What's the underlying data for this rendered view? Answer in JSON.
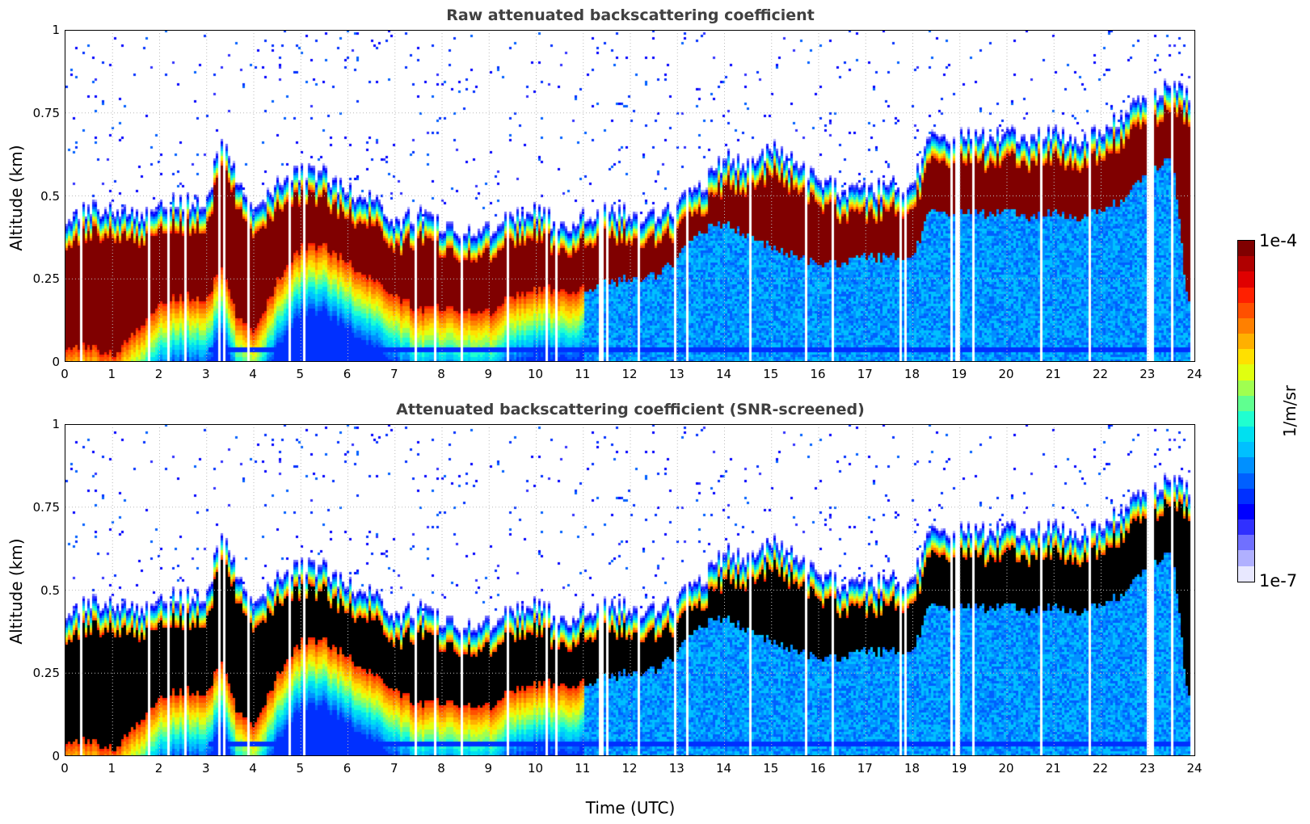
{
  "chart_data": [
    {
      "type": "heatmap",
      "title": "Raw attenuated backscattering coefficient",
      "xlabel": "",
      "ylabel": "Altitude (km)",
      "xlim": [
        0,
        24
      ],
      "ylim": [
        0,
        1
      ],
      "x_ticks": [
        "0",
        "1",
        "2",
        "3",
        "4",
        "5",
        "6",
        "7",
        "8",
        "9",
        "10",
        "11",
        "12",
        "13",
        "14",
        "15",
        "16",
        "17",
        "18",
        "19",
        "20",
        "21",
        "22",
        "23",
        "24"
      ],
      "y_ticks": [
        "0",
        "0.25",
        "0.5",
        "0.75",
        "1"
      ],
      "grid": true,
      "screened": false,
      "layer_profile": {
        "time_utc": [
          0,
          0.5,
          1,
          1.5,
          2,
          2.5,
          3,
          3.3,
          3.6,
          4,
          4.5,
          5,
          5.5,
          6,
          6.5,
          7,
          7.5,
          8,
          8.5,
          9,
          9.5,
          10,
          10.5,
          11,
          11.5,
          12,
          12.5,
          13,
          13.5,
          14,
          14.5,
          15,
          15.5,
          16,
          16.5,
          17,
          17.5,
          18,
          18.3,
          19,
          19.5,
          20,
          20.5,
          21,
          21.5,
          22,
          22.5,
          23,
          23.5,
          23.8
        ],
        "layer_top_km": [
          0.42,
          0.45,
          0.44,
          0.43,
          0.46,
          0.47,
          0.48,
          0.68,
          0.55,
          0.45,
          0.52,
          0.56,
          0.55,
          0.5,
          0.48,
          0.4,
          0.44,
          0.4,
          0.38,
          0.38,
          0.42,
          0.44,
          0.4,
          0.42,
          0.44,
          0.44,
          0.42,
          0.46,
          0.52,
          0.6,
          0.58,
          0.64,
          0.58,
          0.54,
          0.5,
          0.5,
          0.52,
          0.52,
          0.65,
          0.66,
          0.66,
          0.68,
          0.66,
          0.67,
          0.66,
          0.68,
          0.74,
          0.79,
          0.82,
          0.8
        ],
        "layer_base_km": [
          0.05,
          0.05,
          0.02,
          0.1,
          0.18,
          0.2,
          0.2,
          0.3,
          0.15,
          0.1,
          0.25,
          0.35,
          0.35,
          0.3,
          0.25,
          0.2,
          0.16,
          0.17,
          0.16,
          0.15,
          0.2,
          0.22,
          0.22,
          0.22,
          0.24,
          0.26,
          0.26,
          0.32,
          0.4,
          0.42,
          0.38,
          0.35,
          0.32,
          0.3,
          0.3,
          0.32,
          0.32,
          0.32,
          0.45,
          0.45,
          0.45,
          0.46,
          0.44,
          0.45,
          0.44,
          0.46,
          0.5,
          0.58,
          0.62,
          0.2
        ]
      }
    },
    {
      "type": "heatmap",
      "title": "Attenuated backscattering coefficient (SNR-screened)",
      "xlabel": "Time (UTC)",
      "ylabel": "Altitude (km)",
      "xlim": [
        0,
        24
      ],
      "ylim": [
        0,
        1
      ],
      "x_ticks": [
        "0",
        "1",
        "2",
        "3",
        "4",
        "5",
        "6",
        "7",
        "8",
        "9",
        "10",
        "11",
        "12",
        "13",
        "14",
        "15",
        "16",
        "17",
        "18",
        "19",
        "20",
        "21",
        "22",
        "23",
        "24"
      ],
      "y_ticks": [
        "0",
        "0.25",
        "0.5",
        "0.75",
        "1"
      ],
      "grid": true,
      "screened": true,
      "saturated_color": "#000000"
    }
  ],
  "colorbar": {
    "label": "1/m/sr",
    "max_label": "1e-4",
    "min_label": "1e-7",
    "scale": "log",
    "range": [
      1e-07,
      0.0001
    ],
    "colormap": [
      "#e8e8ff",
      "#b0b0ff",
      "#7070ff",
      "#3030ff",
      "#0000ff",
      "#0030ff",
      "#0060ff",
      "#0090ff",
      "#00c0ff",
      "#00e0f0",
      "#20ffd0",
      "#60ff90",
      "#a0ff50",
      "#e0ff10",
      "#ffe000",
      "#ffb000",
      "#ff8000",
      "#ff5000",
      "#ff2000",
      "#e00000",
      "#b00000",
      "#800000"
    ]
  }
}
